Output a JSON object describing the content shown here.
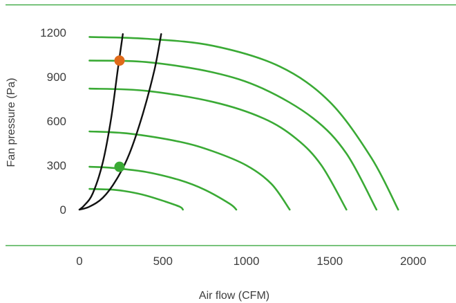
{
  "chart_data": {
    "type": "line",
    "xlabel": "Air flow (CFM)",
    "ylabel": "Fan pressure (Pa)",
    "xlim": [
      0,
      2200
    ],
    "ylim": [
      0,
      1200
    ],
    "x_ticks": [
      "0",
      "500",
      "1000",
      "1500",
      "2000"
    ],
    "x_tick_values": [
      0,
      500,
      1000,
      1500,
      2000
    ],
    "y_ticks": [
      "0",
      "300",
      "600",
      "900",
      "1200"
    ],
    "y_tick_values": [
      0,
      300,
      600,
      900,
      1200
    ],
    "grid": false,
    "colors": {
      "fan_curve": "#3aaa35",
      "system_curve": "#111111",
      "rule": "#4caf50",
      "point_high": "#e06a1a",
      "point_low": "#3aaa35"
    },
    "fan_curves": [
      {
        "x": [
          60,
          200,
          300,
          400,
          500,
          600,
          620
        ],
        "y": [
          140,
          135,
          120,
          95,
          60,
          20,
          0
        ]
      },
      {
        "x": [
          60,
          200,
          400,
          600,
          750,
          900,
          940
        ],
        "y": [
          290,
          282,
          255,
          200,
          135,
          40,
          0
        ]
      },
      {
        "x": [
          60,
          300,
          600,
          800,
          1000,
          1150,
          1260
        ],
        "y": [
          530,
          515,
          460,
          395,
          300,
          175,
          0
        ]
      },
      {
        "x": [
          60,
          400,
          800,
          1100,
          1300,
          1450,
          1600
        ],
        "y": [
          820,
          805,
          730,
          620,
          480,
          300,
          0
        ]
      },
      {
        "x": [
          60,
          400,
          800,
          1100,
          1400,
          1600,
          1780
        ],
        "y": [
          1010,
          1000,
          930,
          820,
          620,
          380,
          0
        ]
      },
      {
        "x": [
          60,
          400,
          800,
          1200,
          1500,
          1750,
          1910
        ],
        "y": [
          1170,
          1158,
          1110,
          970,
          730,
          350,
          0
        ]
      }
    ],
    "system_curves": [
      {
        "x": [
          0,
          30,
          80,
          140,
          190,
          230,
          260
        ],
        "y": [
          0,
          30,
          110,
          320,
          620,
          950,
          1190
        ]
      },
      {
        "x": [
          0,
          60,
          140,
          220,
          300,
          380,
          450,
          490
        ],
        "y": [
          0,
          20,
          80,
          200,
          380,
          650,
          950,
          1190
        ]
      }
    ],
    "operating_points": [
      {
        "x": 240,
        "y": 1010,
        "color_key": "point_high"
      },
      {
        "x": 240,
        "y": 290,
        "color_key": "point_low"
      }
    ]
  }
}
